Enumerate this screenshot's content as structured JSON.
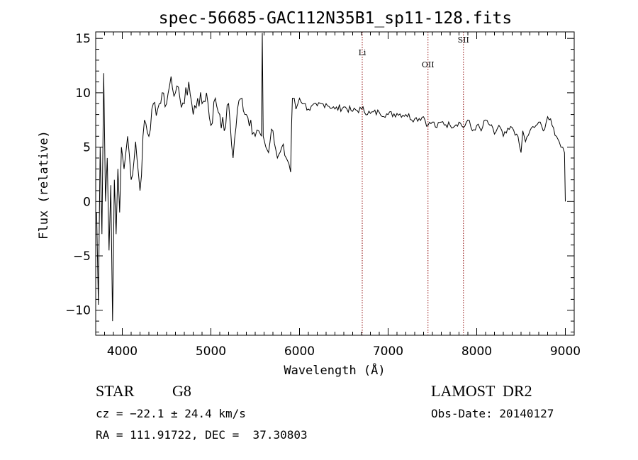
{
  "chart_data": {
    "type": "line",
    "title": "spec-56685-GAC112N35B1_sp11-128.fits",
    "xlabel": "Wavelength (Å)",
    "ylabel": "Flux (relative)",
    "xlim": [
      3700,
      9100
    ],
    "ylim": [
      -12.3,
      15.6
    ],
    "xticks": [
      4000,
      5000,
      6000,
      7000,
      8000,
      9000
    ],
    "yticks": [
      -10,
      -5,
      0,
      5,
      10,
      15
    ],
    "ytick_labels": [
      "−10",
      "−5",
      "0",
      "5",
      "10",
      "15"
    ],
    "series": [
      {
        "color": "#000000",
        "x": [
          3710,
          3730,
          3750,
          3770,
          3790,
          3810,
          3830,
          3850,
          3870,
          3890,
          3910,
          3930,
          3950,
          3970,
          3990,
          4020,
          4060,
          4100,
          4150,
          4200,
          4250,
          4300,
          4350,
          4400,
          4450,
          4500,
          4550,
          4600,
          4650,
          4700,
          4750,
          4800,
          4850,
          4900,
          4950,
          5000,
          5050,
          5100,
          5150,
          5200,
          5250,
          5300,
          5350,
          5400,
          5450,
          5500,
          5540,
          5570,
          5580,
          5590,
          5620,
          5650,
          5700,
          5750,
          5800,
          5850,
          5880,
          5900,
          5910,
          5920,
          5940,
          5960,
          6000,
          6050,
          6100,
          6200,
          6300,
          6400,
          6500,
          6600,
          6700,
          6800,
          6900,
          7000,
          7100,
          7200,
          7300,
          7400,
          7450,
          7500,
          7550,
          7600,
          7700,
          7800,
          7850,
          7900,
          7950,
          8000,
          8050,
          8100,
          8150,
          8200,
          8250,
          8300,
          8400,
          8450,
          8500,
          8520,
          8550,
          8600,
          8650,
          8700,
          8750,
          8800,
          8850,
          8900,
          8930,
          8950,
          8970,
          8990,
          9000
        ],
        "y": [
          -1.0,
          -9.5,
          5.0,
          -3.0,
          11.8,
          0.0,
          4.0,
          -4.5,
          1.5,
          -11.0,
          2.0,
          -3.0,
          3.0,
          -1.0,
          5.0,
          3.0,
          6.0,
          2.0,
          5.5,
          1.0,
          7.5,
          6.0,
          9.0,
          8.5,
          10.0,
          9.0,
          11.5,
          10.0,
          9.5,
          9.0,
          11.0,
          8.0,
          9.5,
          9.0,
          10.0,
          7.0,
          9.5,
          8.0,
          6.5,
          9.0,
          4.0,
          8.5,
          9.5,
          8.0,
          7.5,
          6.0,
          6.5,
          6.0,
          15.5,
          6.0,
          5.0,
          4.5,
          6.5,
          4.0,
          5.0,
          4.0,
          3.5,
          2.7,
          7.0,
          9.5,
          9.5,
          8.5,
          9.5,
          9.0,
          8.5,
          8.8,
          9.0,
          8.5,
          8.7,
          8.3,
          8.5,
          8.1,
          8.2,
          8.0,
          8.1,
          8.0,
          7.6,
          7.8,
          7.0,
          7.3,
          6.8,
          7.3,
          7.0,
          7.3,
          6.8,
          7.5,
          6.5,
          7.0,
          6.5,
          7.5,
          7.0,
          6.2,
          7.0,
          6.0,
          6.8,
          6.2,
          4.5,
          6.5,
          5.5,
          6.5,
          6.8,
          7.3,
          6.5,
          7.8,
          7.0,
          6.0,
          5.5,
          5.0,
          5.0,
          4.5,
          0.0
        ]
      }
    ],
    "lines": [
      {
        "label": "Li",
        "x": 6708
      },
      {
        "label": "OII",
        "x": 7450
      },
      {
        "label": "SII",
        "x": 7850
      }
    ],
    "line_color": "#8b0000",
    "grid": false
  },
  "info": {
    "object_type": "STAR",
    "subclass": "G8",
    "survey": "LAMOST  DR2",
    "cz": "cz = −22.1 ± 24.4 km/s",
    "obs_date": "Obs-Date: 20140127",
    "radec": "RA = 111.91722, DEC =  37.30803"
  }
}
